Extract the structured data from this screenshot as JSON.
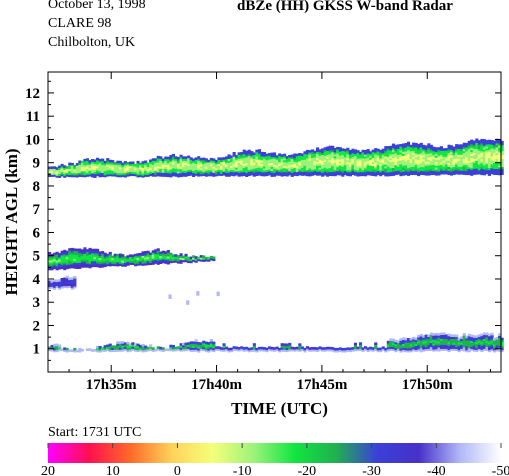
{
  "header": {
    "date": "October 13, 1998",
    "campaign": "CLARE 98",
    "site": "Chilbolton, UK",
    "title": "dBZe (HH)   GKSS  W-band Radar"
  },
  "start_label": "Start: 1731 UTC",
  "chart_data": {
    "type": "heatmap",
    "title": "dBZe (HH)   GKSS  W-band Radar",
    "xlabel": "TIME (UTC)",
    "ylabel": "HEIGHT AGL (km)",
    "x_unit": "minutes after 17h00",
    "xlim": [
      32.0,
      53.5
    ],
    "ylim": [
      0,
      12.9
    ],
    "x_ticks": [
      35,
      40,
      45,
      50
    ],
    "x_tick_labels": [
      "17h35m",
      "17h40m",
      "17h45m",
      "17h50m"
    ],
    "y_ticks": [
      1,
      2,
      3,
      4,
      5,
      6,
      7,
      8,
      9,
      10,
      11,
      12
    ],
    "y_tick_labels": [
      "1",
      "2",
      "3",
      "4",
      "5",
      "6",
      "7",
      "8",
      "9",
      "10",
      "11",
      "12"
    ],
    "colorbar": {
      "unit": "dBZe",
      "range": [
        20,
        -50
      ],
      "tick_values": [
        20,
        10,
        0,
        -10,
        -20,
        -30,
        -40,
        -50
      ],
      "tick_labels": [
        "20",
        "10",
        "0",
        "-10",
        "-20",
        "-30",
        "-40",
        "-50"
      ],
      "colors": [
        "#ff00ff",
        "#ff1050",
        "#ff6a2a",
        "#ffd25a",
        "#f4ff7a",
        "#9cf27a",
        "#10e640",
        "#20b050",
        "#3a40d8",
        "#4830c8",
        "#b0b8f8",
        "#ffffff"
      ]
    },
    "cloud_layers": [
      {
        "name": "upper cloud",
        "x_start": 32.0,
        "x_end": 53.5,
        "base_km": [
          8.4,
          8.5
        ],
        "top_km": [
          8.9,
          9.9
        ],
        "dbze_range": [
          -30,
          -12
        ]
      },
      {
        "name": "mid-level cloud",
        "x_start": 32.0,
        "x_end": 39.9,
        "base_km": [
          4.4,
          4.8
        ],
        "top_km": [
          5.2,
          5.0
        ],
        "dbze_range": [
          -40,
          -20
        ]
      },
      {
        "name": "fragment 3.8 km",
        "x_start": 32.0,
        "x_end": 33.2,
        "base_km": 3.6,
        "top_km": 3.9,
        "dbze_range": [
          -45,
          -35
        ]
      },
      {
        "name": "fragments 2.6-3.4 km",
        "x_start": 37.0,
        "x_end": 40.5,
        "base_km": 2.6,
        "top_km": 3.4,
        "dbze_range": [
          -45,
          -35
        ]
      },
      {
        "name": "low cloud",
        "x_start": 32.0,
        "x_end": 53.5,
        "base_km": 0.9,
        "top_km": [
          1.0,
          1.6
        ],
        "dbze_range": [
          -42,
          -25
        ]
      }
    ]
  }
}
